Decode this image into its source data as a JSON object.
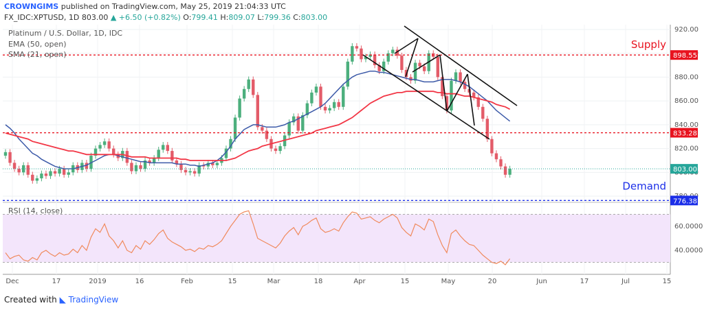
{
  "header": {
    "author": "CROWNGIMS",
    "published_text": "published on TradingView.com, May 25, 2019 21:04:33 UTC",
    "symbol": "FX_IDC:XPTUSD, 1D",
    "last": "803.00",
    "change": "▲ +6.50 (+0.82%)",
    "o_label": "O:",
    "o": "799.41",
    "h_label": "H:",
    "h": "809.07",
    "l_label": "L:",
    "l": "799.36",
    "c_label": "C:",
    "c": "803.00"
  },
  "legend": {
    "title": "Platinum / U.S. Dollar, 1D, IDC",
    "ema": "EMA (50, open)",
    "sma": "SMA (21, open)",
    "rsi": "RSI (14, close)"
  },
  "footer": {
    "created_with": "Created with",
    "brand": "TradingView"
  },
  "colors": {
    "up": "#4caf7d",
    "down": "#e35c69",
    "ema": "#f23645",
    "sma": "#3c5aa8",
    "rsi": "#f08a5d",
    "rsi_band": "#f3e5fb",
    "supply": "#e8131f",
    "demand": "#1b2ee8",
    "price_line": "#26a69a",
    "channel": "#111111"
  },
  "chart_data": [
    {
      "type": "candlestick",
      "title": "Platinum / U.S. Dollar, 1D, IDC",
      "x_ticks": [
        "Dec",
        "17",
        "2019",
        "16",
        "Feb",
        "15",
        "Mar",
        "18",
        "Apr",
        "15",
        "May",
        "20",
        "Jun",
        "17",
        "Jul",
        "15"
      ],
      "y_ticks": [
        "920.00",
        "900.00",
        "880.00",
        "860.00",
        "840.00",
        "820.00",
        "800.00",
        "780.00"
      ],
      "ylim": [
        776,
        924
      ],
      "grid": true,
      "levels": [
        {
          "name": "Supply",
          "value": 898.55,
          "label": "898.55",
          "color": "#e8131f"
        },
        {
          "name": "",
          "value": 833.28,
          "label": "833.28",
          "color": "#e8131f"
        },
        {
          "name": "Demand",
          "value": 776.38,
          "label": "776.38",
          "color": "#1b2ee8"
        }
      ],
      "last_price": {
        "value": 803.0,
        "label": "803.00"
      },
      "closes": [
        817,
        808,
        803,
        800,
        806,
        798,
        793,
        795,
        799,
        797,
        801,
        799,
        803,
        798,
        800,
        806,
        802,
        808,
        803,
        814,
        820,
        823,
        826,
        820,
        815,
        812,
        818,
        808,
        801,
        806,
        803,
        810,
        808,
        812,
        819,
        823,
        818,
        810,
        807,
        802,
        800,
        801,
        799,
        806,
        805,
        808,
        806,
        808,
        812,
        820,
        828,
        846,
        862,
        870,
        878,
        865,
        838,
        835,
        828,
        820,
        818,
        822,
        831,
        842,
        847,
        835,
        848,
        858,
        867,
        872,
        855,
        852,
        854,
        859,
        855,
        872,
        893,
        906,
        904,
        895,
        897,
        899,
        890,
        885,
        893,
        900,
        903,
        898,
        886,
        880,
        877,
        892,
        889,
        885,
        900,
        897,
        880,
        864,
        852,
        877,
        884,
        876,
        870,
        867,
        863,
        855,
        845,
        828,
        816,
        811,
        805,
        798,
        803
      ],
      "ema": [
        833,
        832,
        831,
        830,
        829,
        828,
        826,
        825,
        824,
        823,
        822,
        821,
        820,
        819,
        818,
        818,
        817,
        816,
        815,
        815,
        815,
        815,
        815,
        815,
        815,
        815,
        815,
        814,
        813,
        813,
        813,
        813,
        812,
        812,
        812,
        812,
        812,
        812,
        812,
        811,
        811,
        810,
        810,
        810,
        810,
        810,
        810,
        810,
        810,
        810,
        811,
        812,
        814,
        816,
        818,
        819,
        820,
        822,
        823,
        824,
        825,
        826,
        827,
        828,
        829,
        830,
        831,
        832,
        833,
        835,
        836,
        837,
        838,
        839,
        840,
        842,
        844,
        846,
        849,
        852,
        855,
        858,
        860,
        862,
        864,
        865,
        866,
        867,
        867,
        868,
        868,
        868,
        868,
        868,
        868,
        868,
        867,
        867,
        866,
        866,
        866,
        865,
        864,
        864,
        863,
        862,
        861,
        860,
        859,
        857,
        856,
        855,
        853
      ],
      "sma": [
        840,
        837,
        833,
        828,
        824,
        820,
        816,
        814,
        811,
        809,
        807,
        805,
        804,
        803,
        803,
        803,
        804,
        805,
        806,
        808,
        810,
        812,
        814,
        815,
        815,
        814,
        813,
        812,
        811,
        810,
        809,
        809,
        808,
        808,
        808,
        808,
        808,
        808,
        807,
        807,
        807,
        806,
        806,
        805,
        806,
        807,
        808,
        810,
        813,
        817,
        822,
        828,
        832,
        836,
        838,
        840,
        840,
        839,
        838,
        838,
        838,
        839,
        840,
        842,
        843,
        845,
        847,
        849,
        851,
        853,
        855,
        858,
        862,
        866,
        870,
        874,
        877,
        880,
        882,
        883,
        884,
        885,
        885,
        884,
        884,
        883,
        882,
        881,
        880,
        879,
        878,
        878,
        877,
        876,
        876,
        876,
        877,
        878,
        878,
        878,
        877,
        876,
        874,
        872,
        869,
        866,
        863,
        860,
        856,
        852,
        849,
        846,
        843
      ],
      "rsi": [
        38,
        33,
        35,
        36,
        32,
        31,
        34,
        32,
        38,
        40,
        37,
        35,
        38,
        36,
        37,
        41,
        38,
        44,
        40,
        51,
        58,
        55,
        62,
        52,
        48,
        42,
        48,
        40,
        38,
        44,
        41,
        48,
        45,
        49,
        54,
        57,
        50,
        47,
        45,
        43,
        40,
        41,
        39,
        42,
        41,
        44,
        43,
        45,
        48,
        54,
        60,
        65,
        70,
        72,
        73,
        62,
        50,
        48,
        46,
        44,
        42,
        46,
        52,
        56,
        59,
        53,
        60,
        62,
        65,
        67,
        58,
        55,
        56,
        58,
        56,
        63,
        68,
        72,
        71,
        66,
        67,
        68,
        65,
        63,
        66,
        68,
        70,
        67,
        59,
        55,
        52,
        62,
        60,
        57,
        66,
        64,
        53,
        44,
        38,
        54,
        57,
        52,
        48,
        45,
        44,
        40,
        36,
        33,
        30,
        29,
        31,
        28,
        33
      ],
      "rsi_ticks": [
        "60.0000",
        "40.0000"
      ],
      "rsi_levels": [
        70,
        30
      ]
    }
  ]
}
